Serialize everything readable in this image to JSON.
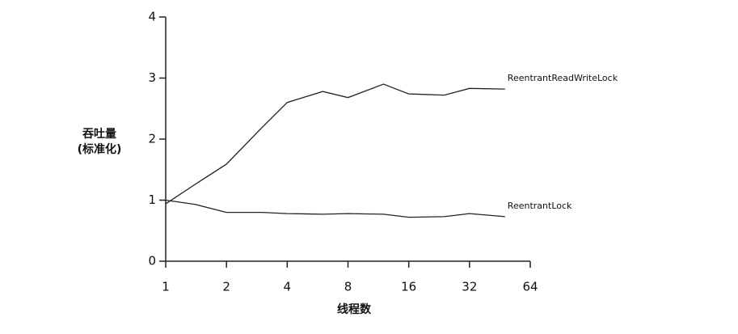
{
  "chart_data": {
    "type": "line",
    "xlabel": "线程数",
    "ylabel": [
      "吞吐量",
      "(标准化)"
    ],
    "x": [
      1,
      1.4,
      2,
      3,
      4,
      6,
      8,
      12,
      16,
      24,
      32,
      48
    ],
    "xscale": "log",
    "xlog_base": 2,
    "xlim": [
      1,
      64
    ],
    "xticks": [
      1,
      2,
      4,
      8,
      16,
      32,
      64
    ],
    "ylim": [
      0,
      4
    ],
    "yticks": [
      0,
      1,
      2,
      3,
      4
    ],
    "grid": false,
    "series": [
      {
        "name": "ReentrantReadWriteLock",
        "color": "#222222",
        "values": [
          0.94,
          1.26,
          1.59,
          2.19,
          2.6,
          2.78,
          2.68,
          2.9,
          2.74,
          2.72,
          2.83,
          2.82
        ]
      },
      {
        "name": "ReentrantLock",
        "color": "#222222",
        "values": [
          1.0,
          0.93,
          0.8,
          0.8,
          0.78,
          0.77,
          0.78,
          0.77,
          0.72,
          0.73,
          0.78,
          0.73
        ]
      }
    ]
  }
}
